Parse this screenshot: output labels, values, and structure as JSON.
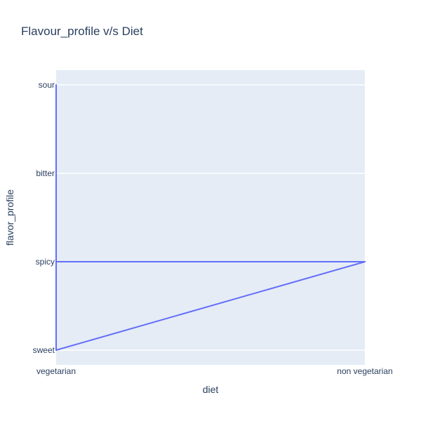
{
  "chart_data": {
    "type": "line",
    "title": "Flavour_profile v/s Diet",
    "xlabel": "diet",
    "ylabel": "flavor_profile",
    "x_categories": [
      "vegetarian",
      "non vegetarian"
    ],
    "y_categories": [
      "sweet",
      "spicy",
      "bitter",
      "sour"
    ],
    "points": [
      {
        "x": "vegetarian",
        "y": "sour"
      },
      {
        "x": "vegetarian",
        "y": "sweet"
      },
      {
        "x": "non vegetarian",
        "y": "spicy"
      },
      {
        "x": "vegetarian",
        "y": "spicy"
      }
    ],
    "grid": true,
    "colors": {
      "line": "#636efa",
      "plot_bg": "#e5ecf6",
      "grid": "#ffffff",
      "text": "#2a3f5f"
    }
  }
}
